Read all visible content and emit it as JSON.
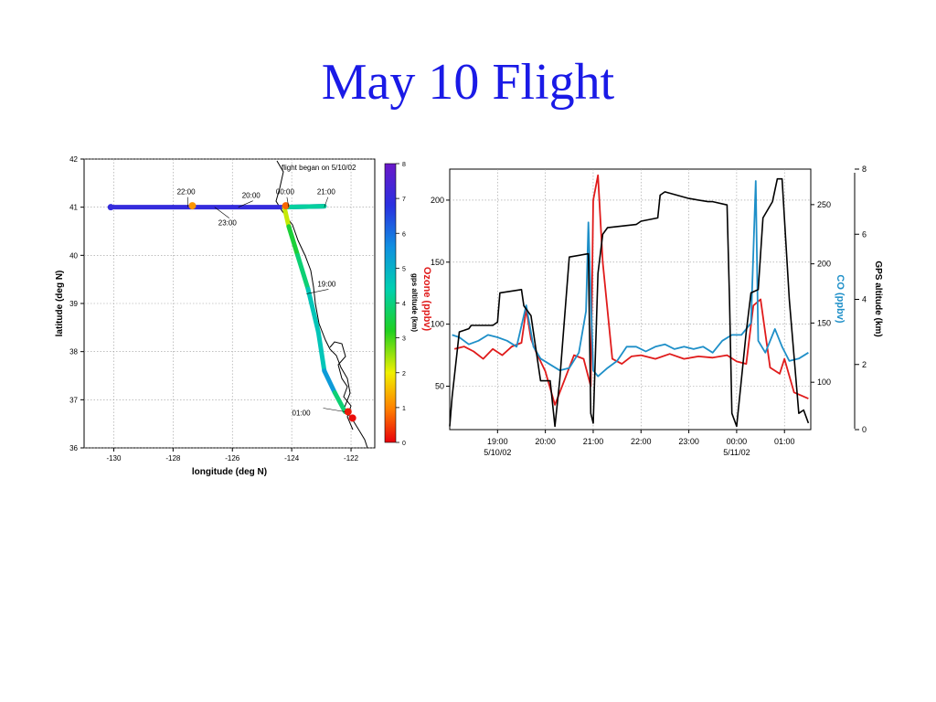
{
  "slide": {
    "title": "May 10 Flight"
  },
  "chart_data": [
    {
      "type": "scatter",
      "title": "",
      "xlabel": "longitude (deg N)",
      "ylabel": "latitude (deg N)",
      "xlim": [
        -131,
        -121.2
      ],
      "ylim": [
        36,
        42
      ],
      "xticks": [
        -130,
        -128,
        -126,
        -124,
        -122
      ],
      "yticks": [
        36,
        37,
        38,
        39,
        40,
        41,
        42
      ],
      "grid": true,
      "annotation": "flight began on 5/10/02",
      "colorbar": {
        "label": "gps altitude (km)",
        "min": 0,
        "max": 8,
        "ticks": [
          0,
          1,
          2,
          3,
          4,
          5,
          6,
          7,
          8
        ]
      },
      "time_labels": [
        {
          "text": "22:00",
          "lon": -127.5,
          "lat": 41.0
        },
        {
          "text": "20:00",
          "lon": -125.8,
          "lat": 41.0
        },
        {
          "text": "23:00",
          "lon": -126.6,
          "lat": 41.0
        },
        {
          "text": "00:00",
          "lon": -124.1,
          "lat": 41.0
        },
        {
          "text": "21:00",
          "lon": -122.9,
          "lat": 41.0
        },
        {
          "text": "19:00",
          "lon": -123.5,
          "lat": 39.2
        },
        {
          "text": "01:00",
          "lon": -122.2,
          "lat": 36.75
        }
      ],
      "track": [
        {
          "lon": -130.1,
          "lat": 41.0,
          "alt": 7.0
        },
        {
          "lon": -128.0,
          "lat": 41.0,
          "alt": 7.0
        },
        {
          "lon": -126.0,
          "lat": 41.0,
          "alt": 7.0
        },
        {
          "lon": -124.3,
          "lat": 41.0,
          "alt": 7.0
        },
        {
          "lon": -122.9,
          "lat": 41.02,
          "alt": 7.0
        },
        {
          "lon": -124.25,
          "lat": 41.0,
          "alt": 1.5
        },
        {
          "lon": -124.1,
          "lat": 40.6,
          "alt": 3.0
        },
        {
          "lon": -123.8,
          "lat": 40.0,
          "alt": 3.8
        },
        {
          "lon": -123.45,
          "lat": 39.3,
          "alt": 4.0
        },
        {
          "lon": -123.1,
          "lat": 38.4,
          "alt": 5.2
        },
        {
          "lon": -122.9,
          "lat": 37.6,
          "alt": 4.0
        },
        {
          "lon": -122.55,
          "lat": 37.15,
          "alt": 6.8
        },
        {
          "lon": -122.2,
          "lat": 36.75,
          "alt": 1.0
        }
      ],
      "markers": [
        {
          "lon": -127.35,
          "lat": 41.03,
          "alt": 1.2
        },
        {
          "lon": -124.2,
          "lat": 41.03,
          "alt": 0.8
        },
        {
          "lon": -122.1,
          "lat": 36.75,
          "alt": 0.2
        },
        {
          "lon": -121.95,
          "lat": 36.62,
          "alt": 0.1
        }
      ]
    },
    {
      "type": "line",
      "title": "",
      "xlabel": "",
      "xlim": [
        18.0,
        25.55
      ],
      "xticks": [
        {
          "value": 19.0,
          "label": "19:00"
        },
        {
          "value": 20.0,
          "label": "20:00"
        },
        {
          "value": 21.0,
          "label": "21:00"
        },
        {
          "value": 22.0,
          "label": "22:00"
        },
        {
          "value": 23.0,
          "label": "23:00"
        },
        {
          "value": 24.0,
          "label": "00:00"
        },
        {
          "value": 25.0,
          "label": "01:00"
        }
      ],
      "date_labels": [
        {
          "value": 19.0,
          "label": "5/10/02"
        },
        {
          "value": 24.0,
          "label": "5/11/02"
        }
      ],
      "grid": true,
      "y_left": {
        "label": "Ozone (ppbv)",
        "color": "#e01b1b",
        "lim": [
          15,
          225
        ],
        "ticks": [
          50,
          100,
          150,
          200
        ]
      },
      "y_right1": {
        "label": "CO (ppbv)",
        "color": "#1e8fc8",
        "lim": [
          60,
          280
        ],
        "ticks": [
          100,
          150,
          200,
          250
        ]
      },
      "y_right2": {
        "label": "GPS altitude (km)",
        "color": "#000000",
        "lim": [
          0,
          8
        ],
        "ticks": [
          0,
          2,
          4,
          6,
          8
        ]
      },
      "series": [
        {
          "name": "GPS altitude (km)",
          "axis": "y_right2",
          "color": "#000000",
          "x": [
            18.0,
            18.05,
            18.2,
            18.4,
            18.45,
            18.9,
            19.0,
            19.05,
            19.5,
            19.55,
            19.7,
            19.9,
            20.1,
            20.2,
            20.3,
            20.5,
            20.9,
            20.95,
            21.0,
            21.1,
            21.2,
            21.3,
            21.9,
            22.0,
            22.35,
            22.4,
            22.5,
            23.0,
            23.4,
            23.5,
            23.8,
            23.85,
            23.9,
            24.0,
            24.2,
            24.3,
            24.45,
            24.55,
            24.75,
            24.85,
            24.95,
            25.1,
            25.3,
            25.4,
            25.5
          ],
          "y": [
            0.1,
            1.0,
            3.0,
            3.1,
            3.2,
            3.2,
            3.3,
            4.2,
            4.3,
            3.8,
            3.5,
            1.5,
            1.5,
            0.1,
            1.5,
            5.3,
            5.4,
            0.5,
            0.2,
            4.8,
            6.0,
            6.2,
            6.3,
            6.4,
            6.5,
            7.2,
            7.3,
            7.1,
            7.0,
            7.0,
            6.9,
            4.0,
            0.5,
            0.1,
            3.0,
            4.2,
            4.3,
            6.5,
            7.0,
            7.7,
            7.7,
            4.0,
            0.5,
            0.6,
            0.2
          ]
        },
        {
          "name": "Ozone (ppbv)",
          "axis": "y_left",
          "color": "#e01b1b",
          "x": [
            18.1,
            18.3,
            18.5,
            18.7,
            18.9,
            19.1,
            19.3,
            19.5,
            19.6,
            19.7,
            19.8,
            19.9,
            20.0,
            20.2,
            20.4,
            20.6,
            20.8,
            20.95,
            21.0,
            21.1,
            21.2,
            21.4,
            21.6,
            21.8,
            22.0,
            22.3,
            22.6,
            22.9,
            23.2,
            23.5,
            23.8,
            24.0,
            24.2,
            24.35,
            24.5,
            24.7,
            24.9,
            25.0,
            25.2,
            25.5
          ],
          "y": [
            80,
            82,
            78,
            72,
            80,
            75,
            82,
            85,
            112,
            88,
            78,
            70,
            62,
            35,
            55,
            75,
            72,
            50,
            200,
            220,
            150,
            72,
            68,
            74,
            75,
            72,
            76,
            72,
            74,
            73,
            75,
            70,
            68,
            115,
            120,
            65,
            60,
            72,
            45,
            40
          ]
        },
        {
          "name": "CO (ppbv)",
          "axis": "y_right1",
          "color": "#1e8fc8",
          "x": [
            18.05,
            18.2,
            18.4,
            18.6,
            18.8,
            19.0,
            19.2,
            19.4,
            19.6,
            19.75,
            19.9,
            20.1,
            20.3,
            20.5,
            20.7,
            20.85,
            20.9,
            21.0,
            21.1,
            21.3,
            21.5,
            21.7,
            21.9,
            22.1,
            22.3,
            22.5,
            22.7,
            22.9,
            23.1,
            23.3,
            23.5,
            23.7,
            23.9,
            24.1,
            24.3,
            24.4,
            24.45,
            24.6,
            24.8,
            24.95,
            25.1,
            25.3,
            25.5
          ],
          "y": [
            140,
            138,
            132,
            135,
            140,
            138,
            135,
            130,
            165,
            130,
            120,
            115,
            110,
            112,
            125,
            160,
            235,
            110,
            105,
            112,
            118,
            130,
            130,
            126,
            130,
            132,
            128,
            130,
            128,
            130,
            125,
            135,
            140,
            140,
            150,
            270,
            135,
            125,
            145,
            130,
            118,
            120,
            125
          ]
        }
      ]
    }
  ]
}
